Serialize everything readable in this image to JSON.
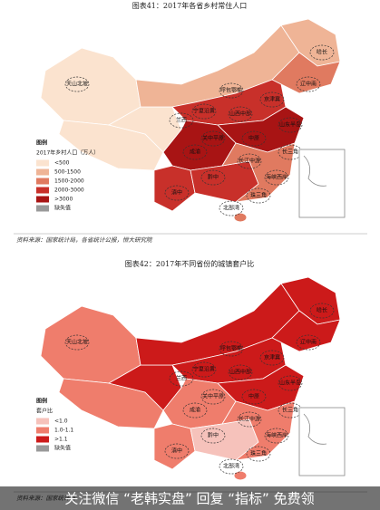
{
  "panels": [
    {
      "title": "图表41：2017年各省乡村常住人口",
      "legend": {
        "title": "图例",
        "subtitle": "2017年乡村人口（万人）",
        "items": [
          {
            "label": "<500",
            "color": "#fbe3cf"
          },
          {
            "label": "500-1500",
            "color": "#efb496"
          },
          {
            "label": "1500-2000",
            "color": "#e07a60"
          },
          {
            "label": "2000-3000",
            "color": "#c8302a"
          },
          {
            "label": ">3000",
            "color": "#a81414"
          },
          {
            "label": "缺失值",
            "color": "#999999"
          }
        ]
      },
      "cities": [
        "天山北坡",
        "哈长",
        "呼包鄂榆",
        "辽中南",
        "京津冀",
        "兰西",
        "山西中部",
        "宁夏沿黄",
        "山东半岛",
        "中原",
        "关中平原",
        "长三角",
        "成渝",
        "长江中游",
        "黔中",
        "海峡西岸",
        "滇中",
        "珠三角",
        "北部湾"
      ],
      "source": "资料来源：国家统计局，各省统计公报，恒大研究院"
    },
    {
      "title": "图表42：2017年不同省份的城镇套户比",
      "legend": {
        "title": "图例",
        "subtitle": "套户比",
        "items": [
          {
            "label": "<1.0",
            "color": "#f6c2bb"
          },
          {
            "label": "1.0-1.1",
            "color": "#ef7d6c"
          },
          {
            "label": ">1.1",
            "color": "#cc1a1a"
          },
          {
            "label": "缺失值",
            "color": "#999999"
          }
        ]
      },
      "cities": [
        "天山北坡",
        "哈长",
        "呼包鄂榆",
        "辽中南",
        "京津冀",
        "兰西",
        "山西中部",
        "宁夏沿黄",
        "山东半岛",
        "中原",
        "关中平原",
        "长三角",
        "成渝",
        "长江中游",
        "黔中",
        "海峡西岸",
        "滇中",
        "珠三角",
        "北部湾"
      ],
      "source": "资料来源：国家统计局"
    }
  ],
  "banner": "关注微信 “老韩实盘” 回复 “指标” 免费领"
}
